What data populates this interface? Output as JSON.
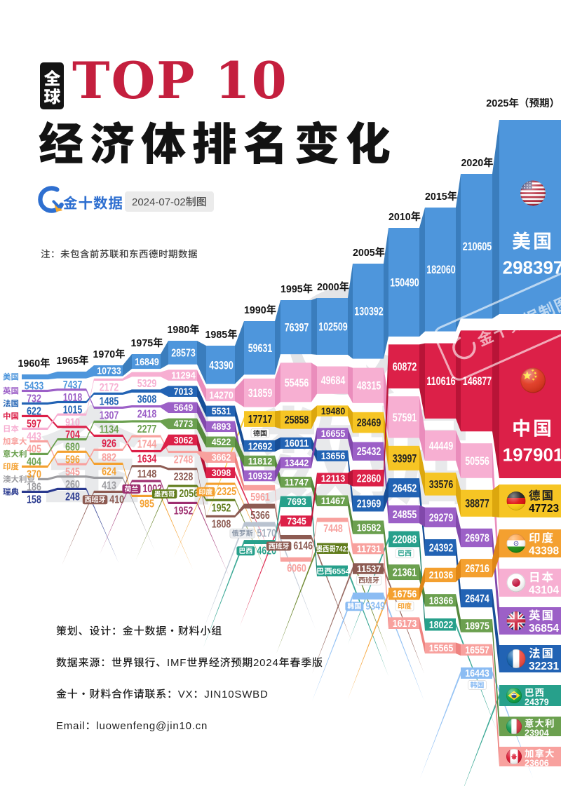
{
  "header": {
    "badge": "全球",
    "title_top": "TOP 10",
    "title_main": "经济体排名变化",
    "logo_text": "金十数据",
    "date_chip": "2024-07-02制图",
    "note": "注：未包含前苏联和东西德时期数据"
  },
  "footer": {
    "lines": [
      "策划、设计：金十数据·财料小组",
      "数据来源：世界银行、IMF世界经济预期2024年春季版",
      "金十·财料合作请联系：VX：JIN10SWBD",
      "Email：luowenfeng@jin10.cn"
    ]
  },
  "watermark": {
    "center_text": "金十数据",
    "stamp_text": "金十数据制图"
  },
  "chart_data": {
    "type": "bump-flow",
    "description": "Top 10 economies ranking change 1960-2025, stepped ranking stream; values shown on each band",
    "countries": [
      {
        "name": "美国",
        "color": "#4e96dc",
        "shade": "#3a7dbd",
        "flag": "us"
      },
      {
        "name": "日本",
        "color": "#f7afd2",
        "shade": "#ea8dbc",
        "flag": "jp"
      },
      {
        "name": "德国",
        "color": "#f6c524",
        "shade": "#dca70e",
        "flag": "de",
        "dark_text": true
      },
      {
        "name": "法国",
        "color": "#2263b4",
        "shade": "#174e97",
        "flag": "fr"
      },
      {
        "name": "英国",
        "color": "#9c60c7",
        "shade": "#8148ab",
        "flag": "gb"
      },
      {
        "name": "意大利",
        "color": "#6ba04f",
        "shade": "#55883c",
        "flag": "it"
      },
      {
        "name": "中国",
        "color": "#dc2048",
        "shade": "#b81437",
        "flag": "cn"
      },
      {
        "name": "加拿大",
        "color": "#f8a19e",
        "shade": "#ee8380",
        "flag": "ca"
      },
      {
        "name": "印度",
        "color": "#f4a02f",
        "shade": "#de8617",
        "flag": "in"
      },
      {
        "name": "澳大利亚",
        "color": "#9c9ca0",
        "shade": "#858589"
      },
      {
        "name": "瑞典",
        "color": "#2a3a8f",
        "shade": "#1f2d75"
      },
      {
        "name": "西班牙",
        "color": "#8d5b52",
        "shade": "#74453d"
      },
      {
        "name": "荷兰",
        "color": "#9e2f70",
        "shade": "#86215c"
      },
      {
        "name": "墨西哥",
        "color": "#617d1d",
        "shade": "#4e6713"
      },
      {
        "name": "俄罗斯",
        "color": "#b9c3d0",
        "shade": "#a3aebd",
        "out_text": "#a5b0bf"
      },
      {
        "name": "巴西",
        "color": "#27a08b",
        "shade": "#1b8170",
        "flag": "br"
      },
      {
        "name": "韩国",
        "color": "#8bbcf3",
        "shade": "#6fa4e4"
      }
    ],
    "years": [
      "1960年",
      "1965年",
      "1970年",
      "1975年",
      "1980年",
      "1985年",
      "1990年",
      "1995年",
      "2000年",
      "2005年",
      "2010年",
      "2015年",
      "2020年",
      "2025年（预期）"
    ],
    "columns": [
      {
        "year": "1960年",
        "entries": [
          {
            "c": "美国",
            "v": 5433,
            "out": 1
          },
          {
            "c": "英国",
            "v": 732,
            "out": 1
          },
          {
            "c": "法国",
            "v": 622,
            "out": 1
          },
          {
            "c": "中国",
            "v": 597,
            "out": 1
          },
          {
            "c": "日本",
            "v": 443,
            "out": 1
          },
          {
            "c": "加拿大",
            "v": 405,
            "out": 1
          },
          {
            "c": "意大利",
            "v": 404,
            "out": 1
          },
          {
            "c": "印度",
            "v": 370,
            "out": 1
          },
          {
            "c": "澳大利亚",
            "v": 186,
            "out": 1
          },
          {
            "c": "瑞典",
            "v": 158,
            "out": 1
          }
        ]
      },
      {
        "year": "1965年",
        "entries": [
          {
            "c": "美国",
            "v": 7437,
            "out": 1
          },
          {
            "c": "英国",
            "v": 1018,
            "out": 1
          },
          {
            "c": "法国",
            "v": 1015,
            "out": 1
          },
          {
            "c": "日本",
            "v": 910,
            "out": 1
          },
          {
            "c": "中国",
            "v": 704,
            "out": 1
          },
          {
            "c": "意大利",
            "v": 680,
            "out": 1
          },
          {
            "c": "印度",
            "v": 596,
            "out": 1
          },
          {
            "c": "加拿大",
            "v": 545,
            "out": 1
          },
          {
            "c": "澳大利亚",
            "v": 260,
            "out": 1
          },
          {
            "c": "瑞典",
            "v": 248,
            "out": 1
          }
        ]
      },
      {
        "year": "1970年",
        "entries": [
          {
            "c": "美国",
            "v": 10733
          },
          {
            "c": "日本",
            "v": 2172,
            "out": 1
          },
          {
            "c": "法国",
            "v": 1485,
            "out": 1
          },
          {
            "c": "英国",
            "v": 1307,
            "out": 1
          },
          {
            "c": "意大利",
            "v": 1134,
            "out": 1
          },
          {
            "c": "中国",
            "v": 926,
            "out": 1
          },
          {
            "c": "加拿大",
            "v": 882,
            "out": 1
          },
          {
            "c": "印度",
            "v": 624,
            "out": 1
          },
          {
            "c": "澳大利亚",
            "v": 413,
            "out": 1
          },
          {
            "c": "西班牙",
            "v": 410,
            "out": 1,
            "tag": "西班牙",
            "tag_pos": "before"
          }
        ]
      },
      {
        "year": "1975年",
        "entries": [
          {
            "c": "美国",
            "v": 16849
          },
          {
            "c": "日本",
            "v": 5329,
            "out": 1
          },
          {
            "c": "法国",
            "v": 3608,
            "out": 1
          },
          {
            "c": "英国",
            "v": 2418,
            "out": 1
          },
          {
            "c": "意大利",
            "v": 2277,
            "out": 1
          },
          {
            "c": "加拿大",
            "v": 1744,
            "out": 1
          },
          {
            "c": "中国",
            "v": 1634,
            "out": 1
          },
          {
            "c": "西班牙",
            "v": 1148,
            "out": 1
          },
          {
            "c": "荷兰",
            "v": 1002,
            "out": 1,
            "tag": "荷兰",
            "tag_pos": "before"
          },
          {
            "c": "印度",
            "v": 985,
            "out": 1
          }
        ]
      },
      {
        "year": "1980年",
        "entries": [
          {
            "c": "美国",
            "v": 28573
          },
          {
            "c": "日本",
            "v": 11294
          },
          {
            "c": "法国",
            "v": 7013
          },
          {
            "c": "英国",
            "v": 5649
          },
          {
            "c": "意大利",
            "v": 4773
          },
          {
            "c": "中国",
            "v": 3062
          },
          {
            "c": "加拿大",
            "v": 2748,
            "out": 1
          },
          {
            "c": "西班牙",
            "v": 2328,
            "out": 1
          },
          {
            "c": "墨西哥",
            "v": 2056,
            "out": 1,
            "tag": "墨西哥",
            "tag_pos": "before"
          },
          {
            "c": "荷兰",
            "v": 1952,
            "out": 1
          }
        ]
      },
      {
        "year": "1985年",
        "entries": [
          {
            "c": "美国",
            "v": 43390
          },
          {
            "c": "日本",
            "v": 14270
          },
          {
            "c": "法国",
            "v": 5531
          },
          {
            "c": "英国",
            "v": 4893
          },
          {
            "c": "意大利",
            "v": 4522
          },
          {
            "c": "加拿大",
            "v": 3662
          },
          {
            "c": "中国",
            "v": 3098
          },
          {
            "c": "印度",
            "v": 2325,
            "out": 1,
            "tag": "印度",
            "tag_pos": "before"
          },
          {
            "c": "墨西哥",
            "v": 1952,
            "out": 1
          },
          {
            "c": "西班牙",
            "v": 1808,
            "out": 1
          }
        ]
      },
      {
        "year": "1990年",
        "entries": [
          {
            "c": "美国",
            "v": 59631
          },
          {
            "c": "日本",
            "v": 31859
          },
          {
            "c": "德国",
            "v": 17717,
            "tag": "德国",
            "tag_pos": "below"
          },
          {
            "c": "法国",
            "v": 12692
          },
          {
            "c": "意大利",
            "v": 11812
          },
          {
            "c": "英国",
            "v": 10932
          },
          {
            "c": "加拿大",
            "v": 5961,
            "out": 1
          },
          {
            "c": "西班牙",
            "v": 5366,
            "out": 1
          },
          {
            "c": "俄罗斯",
            "v": 5170,
            "out": 1,
            "tag": "俄罗斯",
            "tag_pos": "before"
          },
          {
            "c": "巴西",
            "v": 4620,
            "out": 1,
            "tag": "巴西",
            "tag_pos": "before"
          }
        ]
      },
      {
        "year": "1995年",
        "entries": [
          {
            "c": "美国",
            "v": 76397
          },
          {
            "c": "日本",
            "v": 55456
          },
          {
            "c": "德国",
            "v": 25858
          },
          {
            "c": "法国",
            "v": 16011
          },
          {
            "c": "英国",
            "v": 13442
          },
          {
            "c": "意大利",
            "v": 11747
          },
          {
            "c": "巴西",
            "v": 7693
          },
          {
            "c": "中国",
            "v": 7345
          },
          {
            "c": "西班牙",
            "v": 6146,
            "out": 1,
            "tag": "西班牙",
            "tag_pos": "before"
          },
          {
            "c": "加拿大",
            "v": 6060,
            "out": 1
          }
        ]
      },
      {
        "year": "2000年",
        "entries": [
          {
            "c": "美国",
            "v": 102509
          },
          {
            "c": "日本",
            "v": 49684
          },
          {
            "c": "德国",
            "v": 19480
          },
          {
            "c": "英国",
            "v": 16655
          },
          {
            "c": "法国",
            "v": 13656
          },
          {
            "c": "中国",
            "v": 12113
          },
          {
            "c": "意大利",
            "v": 11467
          },
          {
            "c": "加拿大",
            "v": 7448,
            "out": 1
          },
          {
            "c": "墨西哥",
            "v": 7421,
            "tag": "墨西哥",
            "tag_pos": "inline"
          },
          {
            "c": "巴西",
            "v": 6554,
            "tag": "巴西",
            "tag_pos": "inline"
          }
        ]
      },
      {
        "year": "2005年",
        "entries": [
          {
            "c": "美国",
            "v": 130392
          },
          {
            "c": "日本",
            "v": 48315
          },
          {
            "c": "德国",
            "v": 28469
          },
          {
            "c": "英国",
            "v": 25432
          },
          {
            "c": "中国",
            "v": 22860
          },
          {
            "c": "法国",
            "v": 21969
          },
          {
            "c": "意大利",
            "v": 18582
          },
          {
            "c": "加拿大",
            "v": 11731
          },
          {
            "c": "西班牙",
            "v": 11537,
            "tag": "西班牙",
            "tag_pos": "below"
          },
          {
            "c": "韩国",
            "v": 9349,
            "out": 1,
            "tag": "韩国",
            "tag_pos": "before"
          }
        ]
      },
      {
        "year": "2010年",
        "entries": [
          {
            "c": "美国",
            "v": 150490
          },
          {
            "c": "中国",
            "v": 60872
          },
          {
            "c": "日本",
            "v": 57591
          },
          {
            "c": "德国",
            "v": 33997
          },
          {
            "c": "法国",
            "v": 26452
          },
          {
            "c": "英国",
            "v": 24855
          },
          {
            "c": "巴西",
            "v": 22088,
            "tag": "巴西",
            "tag_pos": "below"
          },
          {
            "c": "意大利",
            "v": 21361
          },
          {
            "c": "印度",
            "v": 16756,
            "tag": "印度",
            "tag_pos": "below"
          },
          {
            "c": "加拿大",
            "v": 16173
          }
        ]
      },
      {
        "year": "2015年",
        "entries": [
          {
            "c": "美国",
            "v": 182060
          },
          {
            "c": "中国",
            "v": 110616
          },
          {
            "c": "日本",
            "v": 44449
          },
          {
            "c": "德国",
            "v": 33576
          },
          {
            "c": "英国",
            "v": 29279
          },
          {
            "c": "法国",
            "v": 24392
          },
          {
            "c": "印度",
            "v": 21036
          },
          {
            "c": "意大利",
            "v": 18366
          },
          {
            "c": "巴西",
            "v": 18022
          },
          {
            "c": "加拿大",
            "v": 15565
          }
        ]
      },
      {
        "year": "2020年",
        "entries": [
          {
            "c": "美国",
            "v": 210605
          },
          {
            "c": "中国",
            "v": 146877
          },
          {
            "c": "日本",
            "v": 50556
          },
          {
            "c": "德国",
            "v": 38877
          },
          {
            "c": "英国",
            "v": 26978
          },
          {
            "c": "印度",
            "v": 26716
          },
          {
            "c": "法国",
            "v": 26474
          },
          {
            "c": "意大利",
            "v": 18975
          },
          {
            "c": "加拿大",
            "v": 16557
          },
          {
            "c": "韩国",
            "v": 16443,
            "tag": "韩国",
            "tag_pos": "below"
          }
        ]
      },
      {
        "year": "2025年（预期）",
        "entries": [
          {
            "c": "美国",
            "v": 298397
          },
          {
            "c": "中国",
            "v": 197901
          },
          {
            "c": "德国",
            "v": 47723
          },
          {
            "c": "印度",
            "v": 43398
          },
          {
            "c": "日本",
            "v": 43104
          },
          {
            "c": "英国",
            "v": 36854
          },
          {
            "c": "法国",
            "v": 32231
          },
          {
            "c": "巴西",
            "v": 24379
          },
          {
            "c": "意大利",
            "v": 23904
          },
          {
            "c": "加拿大",
            "v": 23606
          }
        ]
      }
    ]
  }
}
